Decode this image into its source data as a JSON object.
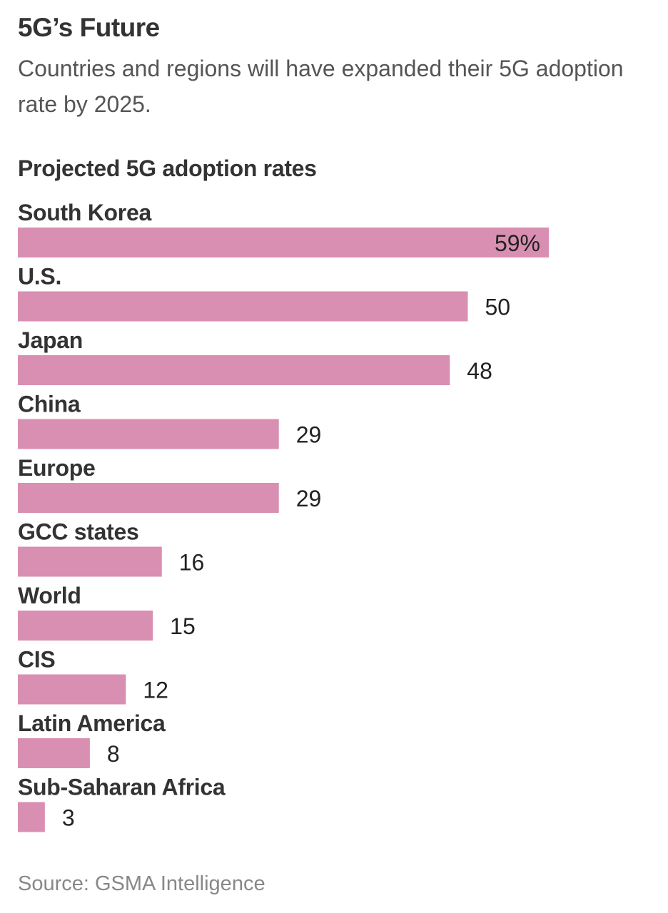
{
  "header": {
    "title": "5G’s Future",
    "subtitle": "Countries and regions will have expanded their 5G adoption rate by 2025."
  },
  "chart_data": {
    "type": "bar",
    "orientation": "horizontal",
    "title": "Projected 5G adoption rates",
    "categories": [
      "South Korea",
      "U.S.",
      "Japan",
      "China",
      "Europe",
      "GCC states",
      "World",
      "CIS",
      "Latin America",
      "Sub-Saharan Africa"
    ],
    "values": [
      59,
      50,
      48,
      29,
      29,
      16,
      15,
      12,
      8,
      3
    ],
    "value_labels": [
      "59%",
      "50",
      "48",
      "29",
      "29",
      "16",
      "15",
      "12",
      "8",
      "3"
    ],
    "unit": "%",
    "xlim": [
      0,
      59
    ],
    "grid": false,
    "legend": "none",
    "bar_color": "#d98fb1"
  },
  "footer": {
    "source": "Source: GSMA Intelligence"
  }
}
